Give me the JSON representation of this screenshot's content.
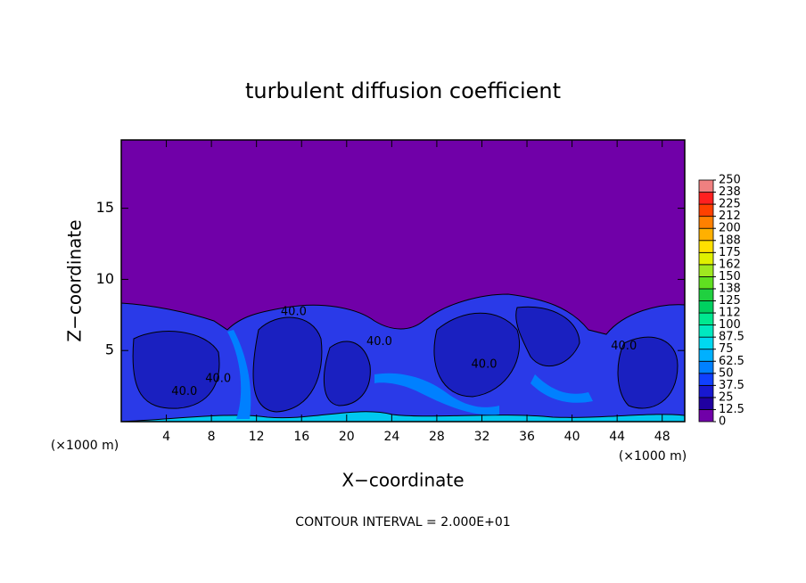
{
  "chart_data": {
    "type": "contour",
    "title": "turbulent diffusion coefficient",
    "xlabel": "X−coordinate",
    "ylabel": "Z−coordinate",
    "x_unit_labels": [
      "(×1000 m)",
      "(×1000 m)"
    ],
    "xlim": [
      0,
      50
    ],
    "ylim": [
      0,
      19.8
    ],
    "xticks": [
      4,
      8,
      12,
      16,
      20,
      24,
      28,
      32,
      36,
      40,
      44,
      48
    ],
    "yticks": [
      5,
      10,
      15
    ],
    "colorbar": {
      "clim": [
        0,
        250
      ],
      "ticks": [
        0,
        12.5,
        25,
        37.5,
        50,
        62.5,
        75,
        87.5,
        100,
        {
          "value": 112.5,
          "label": "112"
        },
        125,
        {
          "value": 137.5,
          "label": "138"
        },
        150,
        {
          "value": 162.5,
          "label": "162"
        },
        175,
        {
          "value": 187.5,
          "label": "188"
        },
        200,
        {
          "value": 212.5,
          "label": "212"
        },
        225,
        {
          "value": 237.5,
          "label": "238"
        },
        250
      ],
      "colors": [
        "#7000a8",
        "#2000a0",
        "#1818d0",
        "#1040ff",
        "#0080ff",
        "#00b0ff",
        "#00d8f0",
        "#00e8c0",
        "#00e890",
        "#00d060",
        "#20d040",
        "#60e020",
        "#a0e820",
        "#e0f000",
        "#ffe000",
        "#ffb000",
        "#ff8000",
        "#ff4000",
        "#ff2020",
        "#f08080"
      ]
    },
    "contour_labels": [
      {
        "text": "40.0",
        "x": 5.6,
        "y": 2.1
      },
      {
        "text": "40.0",
        "x": 8.6,
        "y": 3.0
      },
      {
        "text": "40.0",
        "x": 15.3,
        "y": 7.7
      },
      {
        "text": "40.0",
        "x": 22.9,
        "y": 5.6
      },
      {
        "text": "40.0",
        "x": 32.2,
        "y": 4.0
      },
      {
        "text": "40.0",
        "x": 44.6,
        "y": 5.3
      }
    ],
    "footnote": "CONTOUR INTERVAL = 2.000E+01"
  }
}
